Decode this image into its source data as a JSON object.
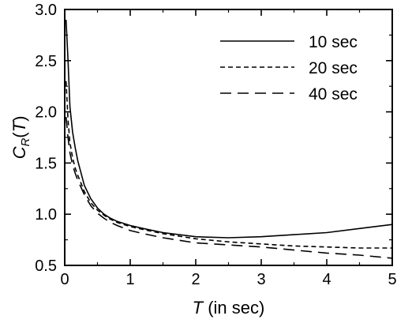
{
  "chart_data": {
    "type": "line",
    "title": "",
    "xlabel": {
      "symbol": "T",
      "rest": " (in sec)"
    },
    "ylabel": {
      "main": "C",
      "sub": "R",
      "open": "(",
      "arg": "T",
      "close": ")"
    },
    "xlim": [
      0,
      5
    ],
    "ylim": [
      0.5,
      3.0
    ],
    "x_ticks": [
      "0",
      "1",
      "2",
      "3",
      "4",
      "5"
    ],
    "y_ticks": [
      "0.5",
      "1.0",
      "1.5",
      "2.0",
      "2.5",
      "3.0"
    ],
    "grid": false,
    "legend_position": "top-right",
    "series": [
      {
        "name": "10 sec",
        "dash": "solid",
        "x": [
          0.02,
          0.05,
          0.08,
          0.12,
          0.16,
          0.2,
          0.25,
          0.3,
          0.4,
          0.5,
          0.6,
          0.7,
          0.8,
          1.0,
          1.2,
          1.5,
          2.0,
          2.5,
          3.0,
          3.5,
          4.0,
          4.5,
          5.0
        ],
        "y": [
          2.9,
          2.5,
          2.05,
          1.8,
          1.65,
          1.52,
          1.4,
          1.28,
          1.15,
          1.06,
          1.0,
          0.96,
          0.93,
          0.89,
          0.86,
          0.82,
          0.78,
          0.77,
          0.78,
          0.8,
          0.82,
          0.86,
          0.9
        ]
      },
      {
        "name": "20 sec",
        "dash": "short-dash",
        "x": [
          0.02,
          0.05,
          0.08,
          0.12,
          0.16,
          0.2,
          0.25,
          0.3,
          0.4,
          0.5,
          0.6,
          0.7,
          0.8,
          1.0,
          1.2,
          1.5,
          2.0,
          2.5,
          3.0,
          3.5,
          4.0,
          4.5,
          5.0
        ],
        "y": [
          2.3,
          1.92,
          1.7,
          1.55,
          1.45,
          1.38,
          1.3,
          1.22,
          1.11,
          1.04,
          0.99,
          0.95,
          0.92,
          0.88,
          0.85,
          0.81,
          0.76,
          0.73,
          0.71,
          0.69,
          0.68,
          0.67,
          0.67
        ]
      },
      {
        "name": "40 sec",
        "dash": "long-dash",
        "x": [
          0.02,
          0.05,
          0.08,
          0.12,
          0.16,
          0.2,
          0.25,
          0.3,
          0.4,
          0.5,
          0.6,
          0.7,
          0.8,
          1.0,
          1.2,
          1.5,
          2.0,
          2.5,
          3.0,
          3.5,
          4.0,
          4.5,
          5.0
        ],
        "y": [
          1.95,
          1.75,
          1.6,
          1.48,
          1.4,
          1.33,
          1.26,
          1.19,
          1.08,
          1.01,
          0.96,
          0.92,
          0.89,
          0.84,
          0.81,
          0.77,
          0.72,
          0.7,
          0.68,
          0.65,
          0.62,
          0.6,
          0.57
        ]
      }
    ]
  }
}
